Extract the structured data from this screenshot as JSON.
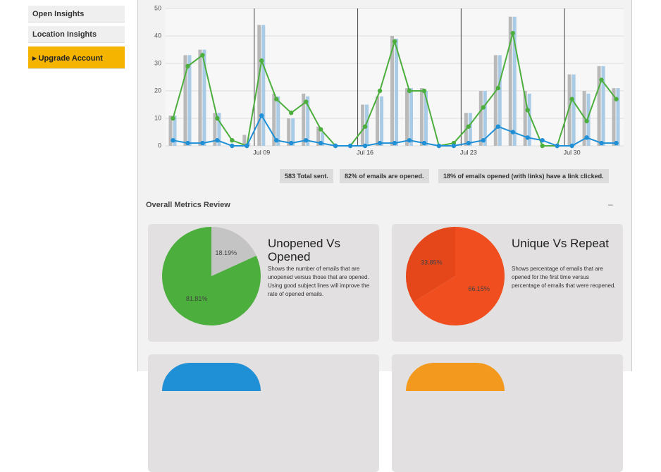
{
  "sidebar": {
    "items": [
      "Open Insights",
      "Location Insights"
    ],
    "upgrade": "Upgrade Account"
  },
  "chart_data": {
    "type": "bar",
    "categories": [
      null,
      null,
      null,
      null,
      null,
      null,
      "Jul 09",
      null,
      null,
      null,
      null,
      null,
      null,
      "Jul 16",
      null,
      null,
      null,
      null,
      null,
      null,
      "Jul 23",
      null,
      null,
      null,
      null,
      null,
      null,
      "Jul 30",
      null,
      null,
      null
    ],
    "series": [
      {
        "type": "bar",
        "color": "#b9b9b9",
        "values": [
          11,
          33,
          35,
          12,
          0,
          4,
          44,
          19,
          10,
          19,
          7,
          0,
          0,
          15,
          18,
          40,
          21,
          21,
          0,
          0,
          12,
          20,
          33,
          47,
          20,
          0,
          0,
          26,
          20,
          29,
          21
        ]
      },
      {
        "type": "bar",
        "color": "#a9cbe6",
        "values": [
          11,
          33,
          35,
          12,
          0,
          1,
          44,
          18,
          10,
          18,
          5,
          0,
          0,
          15,
          18,
          39,
          21,
          20,
          0,
          0,
          12,
          20,
          33,
          47,
          19,
          0,
          0,
          26,
          19,
          29,
          21
        ]
      },
      {
        "type": "line",
        "color": "#4cae3c",
        "values": [
          10,
          29,
          33,
          10,
          2,
          0,
          31,
          17,
          12,
          16,
          6,
          0,
          0,
          7,
          20,
          38,
          20,
          20,
          0,
          1,
          7,
          14,
          21,
          41,
          13,
          0,
          0,
          17,
          9,
          24,
          17
        ]
      },
      {
        "type": "line",
        "color": "#1f8fd6",
        "values": [
          2,
          1,
          1,
          2,
          0,
          0,
          11,
          2,
          1,
          2,
          1,
          0,
          0,
          0,
          1,
          1,
          2,
          1,
          0,
          0,
          1,
          2,
          7,
          5,
          3,
          2,
          0,
          0,
          3,
          1,
          1
        ]
      }
    ],
    "ylim": [
      0,
      50
    ],
    "yticks": [
      0,
      10,
      20,
      30,
      40,
      50
    ],
    "grid": true
  },
  "stats": [
    "583 Total sent.",
    "82% of emails are opened.",
    "18% of emails opened (with links) have a link clicked."
  ],
  "section_title": "Overall Metrics Review",
  "cards": [
    {
      "title": "Unopened Vs Opened",
      "text": "Shows the number of emails that are unopened versus those that are opened. Using good subject lines will improve the rate of opened emails.",
      "pie": {
        "type": "pie",
        "values": [
          18.19,
          81.81
        ],
        "value_labels": [
          "18.19%",
          "81.81%"
        ],
        "colors": [
          "#c4c4c4",
          "#4cae3c"
        ]
      }
    },
    {
      "title": "Unique Vs Repeat",
      "text": "Shows percentage of emails that are opened for the first time versus percentage of emails that were reopened.",
      "pie": {
        "type": "pie",
        "values": [
          33.85,
          66.15
        ],
        "value_labels": [
          "33.85%",
          "66.15%"
        ],
        "colors": [
          "#e5471b",
          "#f04e1e"
        ]
      }
    }
  ]
}
